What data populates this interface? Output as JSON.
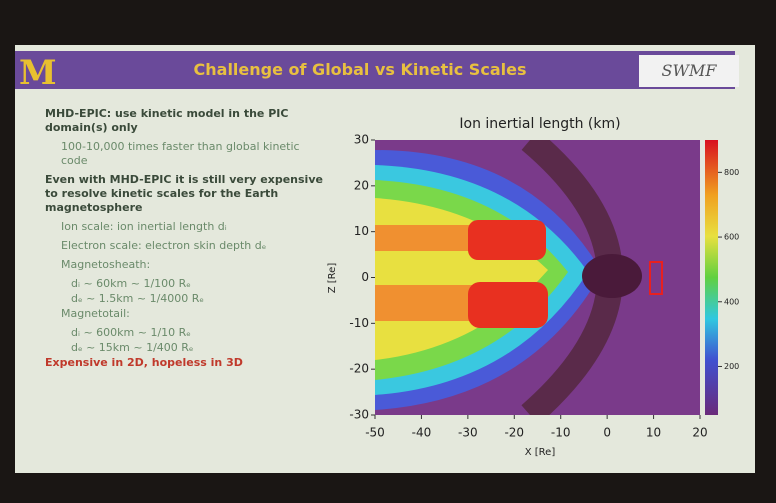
{
  "header": {
    "logo": "M",
    "title": "Challenge of Global vs Kinetic Scales",
    "brand": "SWMF"
  },
  "bullets": [
    {
      "text": "MHD-EPIC: use kinetic model in the PIC domain(s) only",
      "level": 1
    },
    {
      "text": "100-10,000 times faster than global kinetic code",
      "level": 2
    },
    {
      "text": "Even with MHD-EPIC it is still very expensive to resolve kinetic scales for the Earth magnetosphere",
      "level": 1
    },
    {
      "text": "Ion scale: ion inertial length dᵢ",
      "level": 2
    },
    {
      "text": "Electron scale: electron skin depth dₑ",
      "level": 2
    },
    {
      "text": "Magnetosheath:",
      "level": 2
    },
    {
      "text": "dᵢ ~ 60km ~ 1/100 Rₑ",
      "level": 3
    },
    {
      "text": "dₑ ~ 1.5km ~ 1/4000 Rₑ",
      "level": 3
    },
    {
      "text": "Magnetotail:",
      "level": 2
    },
    {
      "text": "dᵢ ~ 600km ~ 1/10 Rₑ",
      "level": 3
    },
    {
      "text": "dₑ ~ 15km ~ 1/400 Rₑ",
      "level": 3
    },
    {
      "text": "Expensive in 2D, hopeless in 3D",
      "level": 1,
      "color": "#c0392b"
    }
  ],
  "plot": {
    "title": "Ion inertial length (km)",
    "xlabel": "X [Re]",
    "ylabel": "Z [Re]",
    "xlim": [
      -50,
      20
    ],
    "xticks": [
      -50,
      -40,
      -30,
      -20,
      -10,
      0,
      10,
      20
    ],
    "ylim": [
      -30,
      30
    ],
    "yticks": [
      -30,
      -20,
      -10,
      0,
      10,
      20,
      30
    ],
    "clim": [
      50,
      900
    ],
    "cticks": [
      200,
      400,
      600,
      800
    ]
  }
}
